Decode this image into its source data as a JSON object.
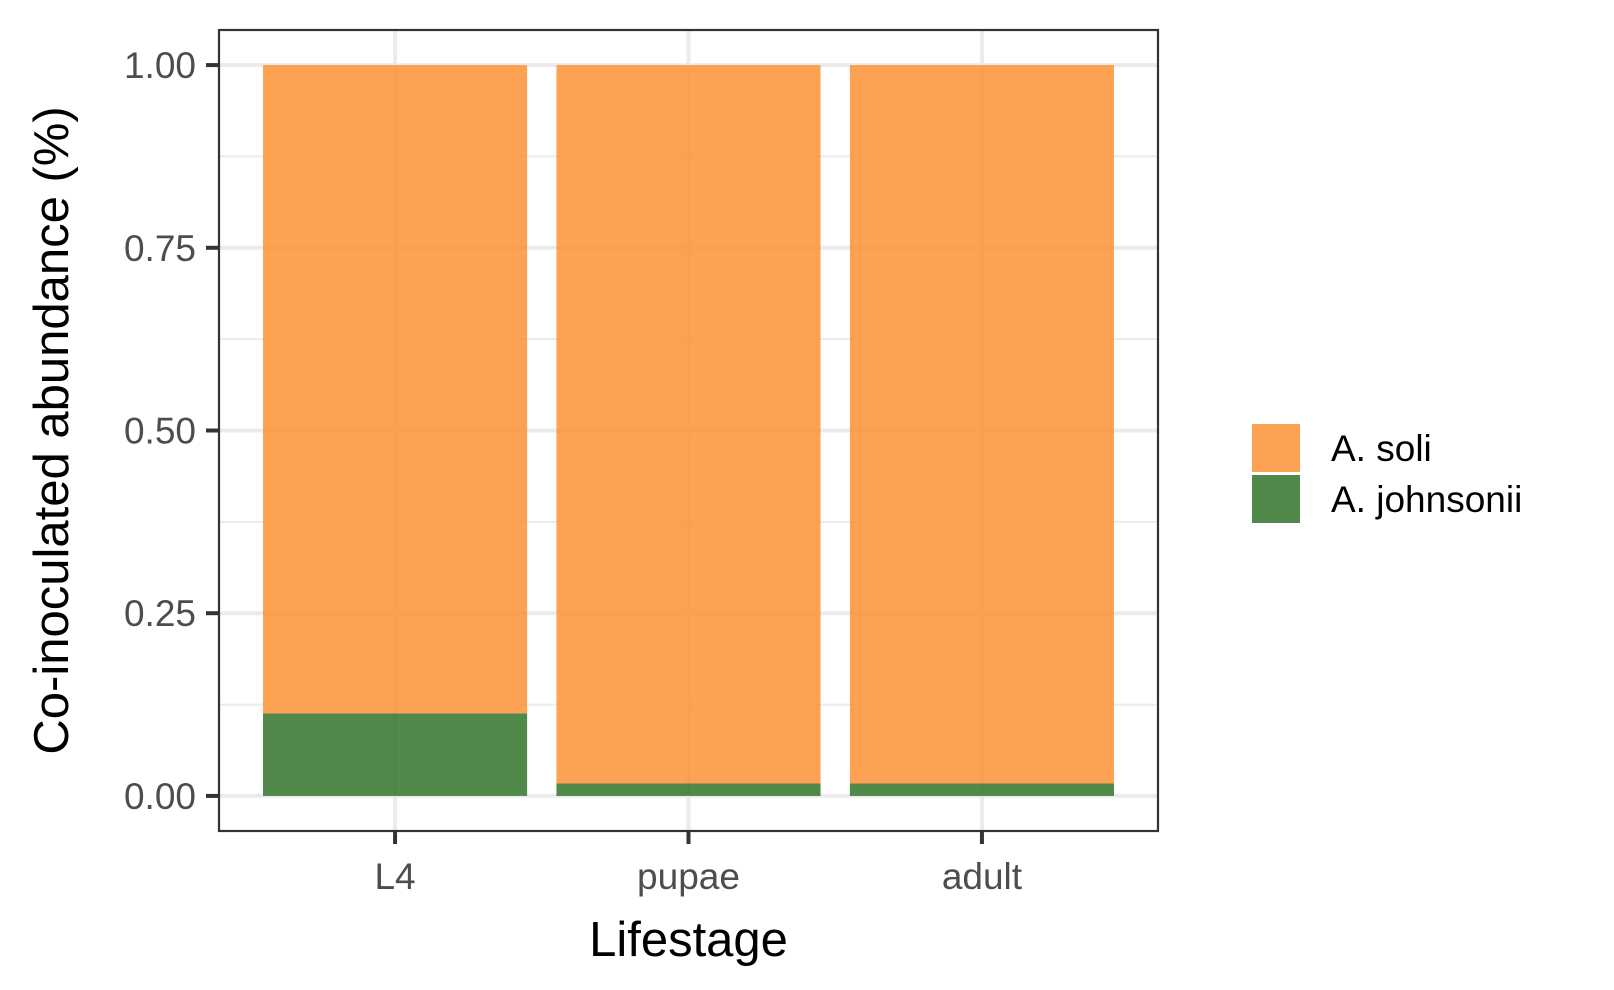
{
  "chart_data": {
    "type": "bar",
    "stacked": true,
    "categories": [
      "L4",
      "pupae",
      "adult"
    ],
    "series": [
      {
        "name": "A. johnsonii",
        "color": "#33742a",
        "values": [
          0.113,
          0.017,
          0.017
        ]
      },
      {
        "name": "A. soli",
        "color": "#fd9235",
        "values": [
          0.887,
          0.983,
          0.983
        ]
      }
    ],
    "legend_order": [
      "A. soli",
      "A. johnsonii"
    ],
    "title": "",
    "xlabel": "Lifestage",
    "ylabel": "Co-inoculated abundance (%)",
    "ylim": [
      -0.048,
      1.048
    ],
    "yticks": [
      0,
      0.25,
      0.5,
      0.75,
      1
    ],
    "ytick_labels": [
      "0.00",
      "0.25",
      "0.50",
      "0.75",
      "1.00"
    ],
    "grid": true,
    "legend_position": "right",
    "panel_border": true
  }
}
